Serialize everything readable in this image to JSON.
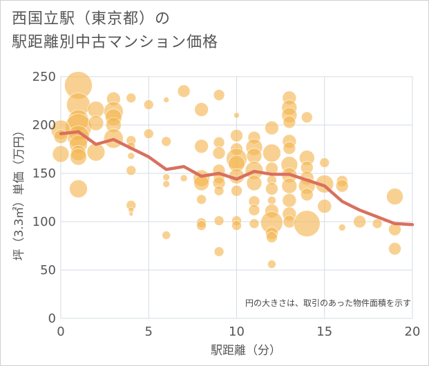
{
  "chart_data": {
    "type": "scatter",
    "title_line1": "西国立駅（東京都）の",
    "title_line2": "駅距離別中古マンション価格",
    "xlabel": "駅距離（分）",
    "ylabel": "坪（3.3㎡）単価（万円）",
    "note": "円の大きさは、取引のあった物件面積を示す",
    "xlim": [
      0,
      20
    ],
    "ylim": [
      0,
      250
    ],
    "x_ticks": [
      "0",
      "5",
      "10",
      "15",
      "20"
    ],
    "y_ticks": [
      "0",
      "50",
      "100",
      "150",
      "200",
      "250"
    ],
    "grid": true,
    "colors": {
      "bubble": "#f3b44f",
      "line": "#d9705e",
      "grid": "#d3dbe6"
    },
    "points": [
      {
        "x": 1,
        "y": 241,
        "s": 20
      },
      {
        "x": 1,
        "y": 221,
        "s": 17
      },
      {
        "x": 1,
        "y": 205,
        "s": 15
      },
      {
        "x": 1,
        "y": 198,
        "s": 19
      },
      {
        "x": 1,
        "y": 188,
        "s": 16
      },
      {
        "x": 1,
        "y": 180,
        "s": 13
      },
      {
        "x": 1,
        "y": 171,
        "s": 11
      },
      {
        "x": 1,
        "y": 167,
        "s": 12
      },
      {
        "x": 1,
        "y": 134,
        "s": 13
      },
      {
        "x": 0,
        "y": 170,
        "s": 12
      },
      {
        "x": 0,
        "y": 195,
        "s": 14
      },
      {
        "x": 0,
        "y": 188,
        "s": 10
      },
      {
        "x": 2,
        "y": 216,
        "s": 12
      },
      {
        "x": 2,
        "y": 202,
        "s": 11
      },
      {
        "x": 2,
        "y": 172,
        "s": 13
      },
      {
        "x": 3,
        "y": 227,
        "s": 10
      },
      {
        "x": 3,
        "y": 214,
        "s": 14
      },
      {
        "x": 3,
        "y": 208,
        "s": 12
      },
      {
        "x": 3,
        "y": 200,
        "s": 11
      },
      {
        "x": 3,
        "y": 186,
        "s": 14
      },
      {
        "x": 4,
        "y": 228,
        "s": 7
      },
      {
        "x": 4,
        "y": 184,
        "s": 7
      },
      {
        "x": 4,
        "y": 178,
        "s": 6
      },
      {
        "x": 4,
        "y": 168,
        "s": 5
      },
      {
        "x": 4,
        "y": 153,
        "s": 7
      },
      {
        "x": 4,
        "y": 117,
        "s": 7
      },
      {
        "x": 4,
        "y": 112,
        "s": 4
      },
      {
        "x": 4,
        "y": 108,
        "s": 3
      },
      {
        "x": 5,
        "y": 221,
        "s": 7
      },
      {
        "x": 5,
        "y": 191,
        "s": 7
      },
      {
        "x": 6,
        "y": 226,
        "s": 4
      },
      {
        "x": 6,
        "y": 183,
        "s": 7
      },
      {
        "x": 6,
        "y": 146,
        "s": 5
      },
      {
        "x": 6,
        "y": 139,
        "s": 5
      },
      {
        "x": 6,
        "y": 86,
        "s": 6
      },
      {
        "x": 7,
        "y": 235,
        "s": 9
      },
      {
        "x": 7,
        "y": 145,
        "s": 5
      },
      {
        "x": 8,
        "y": 216,
        "s": 10
      },
      {
        "x": 8,
        "y": 178,
        "s": 10
      },
      {
        "x": 8,
        "y": 145,
        "s": 12
      },
      {
        "x": 8,
        "y": 140,
        "s": 11
      },
      {
        "x": 8,
        "y": 123,
        "s": 7
      },
      {
        "x": 8,
        "y": 99,
        "s": 7
      },
      {
        "x": 8,
        "y": 96,
        "s": 7
      },
      {
        "x": 9,
        "y": 231,
        "s": 8
      },
      {
        "x": 9,
        "y": 182,
        "s": 8
      },
      {
        "x": 9,
        "y": 171,
        "s": 9
      },
      {
        "x": 9,
        "y": 153,
        "s": 9
      },
      {
        "x": 9,
        "y": 145,
        "s": 8
      },
      {
        "x": 9,
        "y": 140,
        "s": 9
      },
      {
        "x": 9,
        "y": 132,
        "s": 7
      },
      {
        "x": 9,
        "y": 101,
        "s": 7
      },
      {
        "x": 9,
        "y": 69,
        "s": 7
      },
      {
        "x": 10,
        "y": 210,
        "s": 4
      },
      {
        "x": 10,
        "y": 189,
        "s": 9
      },
      {
        "x": 10,
        "y": 175,
        "s": 9
      },
      {
        "x": 10,
        "y": 165,
        "s": 15
      },
      {
        "x": 10,
        "y": 160,
        "s": 12
      },
      {
        "x": 10,
        "y": 147,
        "s": 11
      },
      {
        "x": 10,
        "y": 132,
        "s": 8
      },
      {
        "x": 10,
        "y": 101,
        "s": 7
      },
      {
        "x": 10,
        "y": 96,
        "s": 7
      },
      {
        "x": 11,
        "y": 187,
        "s": 9
      },
      {
        "x": 11,
        "y": 177,
        "s": 12
      },
      {
        "x": 11,
        "y": 168,
        "s": 11
      },
      {
        "x": 11,
        "y": 153,
        "s": 13
      },
      {
        "x": 11,
        "y": 140,
        "s": 11
      },
      {
        "x": 11,
        "y": 121,
        "s": 8
      },
      {
        "x": 11,
        "y": 112,
        "s": 8
      },
      {
        "x": 11,
        "y": 98,
        "s": 7
      },
      {
        "x": 12,
        "y": 197,
        "s": 10
      },
      {
        "x": 12,
        "y": 171,
        "s": 13
      },
      {
        "x": 12,
        "y": 155,
        "s": 9
      },
      {
        "x": 12,
        "y": 143,
        "s": 7
      },
      {
        "x": 12,
        "y": 134,
        "s": 9
      },
      {
        "x": 12,
        "y": 122,
        "s": 6
      },
      {
        "x": 12,
        "y": 111,
        "s": 10
      },
      {
        "x": 12,
        "y": 99,
        "s": 16
      },
      {
        "x": 12,
        "y": 88,
        "s": 9
      },
      {
        "x": 12,
        "y": 84,
        "s": 8
      },
      {
        "x": 12,
        "y": 56,
        "s": 6
      },
      {
        "x": 13,
        "y": 228,
        "s": 10
      },
      {
        "x": 13,
        "y": 218,
        "s": 11
      },
      {
        "x": 13,
        "y": 210,
        "s": 11
      },
      {
        "x": 13,
        "y": 203,
        "s": 9
      },
      {
        "x": 13,
        "y": 183,
        "s": 10
      },
      {
        "x": 13,
        "y": 176,
        "s": 9
      },
      {
        "x": 13,
        "y": 159,
        "s": 12
      },
      {
        "x": 13,
        "y": 148,
        "s": 11
      },
      {
        "x": 13,
        "y": 137,
        "s": 11
      },
      {
        "x": 13,
        "y": 122,
        "s": 10
      },
      {
        "x": 13,
        "y": 108,
        "s": 10
      },
      {
        "x": 13,
        "y": 100,
        "s": 9
      },
      {
        "x": 14,
        "y": 208,
        "s": 8
      },
      {
        "x": 14,
        "y": 166,
        "s": 11
      },
      {
        "x": 14,
        "y": 156,
        "s": 9
      },
      {
        "x": 14,
        "y": 145,
        "s": 10
      },
      {
        "x": 14,
        "y": 137,
        "s": 12
      },
      {
        "x": 14,
        "y": 128,
        "s": 9
      },
      {
        "x": 14,
        "y": 98,
        "s": 19
      },
      {
        "x": 15,
        "y": 161,
        "s": 7
      },
      {
        "x": 15,
        "y": 139,
        "s": 13
      },
      {
        "x": 15,
        "y": 116,
        "s": 10
      },
      {
        "x": 16,
        "y": 142,
        "s": 8
      },
      {
        "x": 16,
        "y": 137,
        "s": 9
      },
      {
        "x": 16,
        "y": 94,
        "s": 5
      },
      {
        "x": 17,
        "y": 100,
        "s": 9
      },
      {
        "x": 18,
        "y": 98,
        "s": 7
      },
      {
        "x": 19,
        "y": 126,
        "s": 12
      },
      {
        "x": 19,
        "y": 92,
        "s": 9
      },
      {
        "x": 19,
        "y": 72,
        "s": 9
      }
    ],
    "trend": [
      {
        "x": 0,
        "y": 191
      },
      {
        "x": 1,
        "y": 193
      },
      {
        "x": 2,
        "y": 180
      },
      {
        "x": 3,
        "y": 185
      },
      {
        "x": 4,
        "y": 176
      },
      {
        "x": 5,
        "y": 167
      },
      {
        "x": 6,
        "y": 154
      },
      {
        "x": 7,
        "y": 157
      },
      {
        "x": 8,
        "y": 147
      },
      {
        "x": 9,
        "y": 150
      },
      {
        "x": 10,
        "y": 144
      },
      {
        "x": 11,
        "y": 152
      },
      {
        "x": 12,
        "y": 149
      },
      {
        "x": 13,
        "y": 149
      },
      {
        "x": 14,
        "y": 143
      },
      {
        "x": 15,
        "y": 137
      },
      {
        "x": 16,
        "y": 121
      },
      {
        "x": 17,
        "y": 112
      },
      {
        "x": 18,
        "y": 105
      },
      {
        "x": 19,
        "y": 98
      },
      {
        "x": 20,
        "y": 97
      }
    ]
  }
}
